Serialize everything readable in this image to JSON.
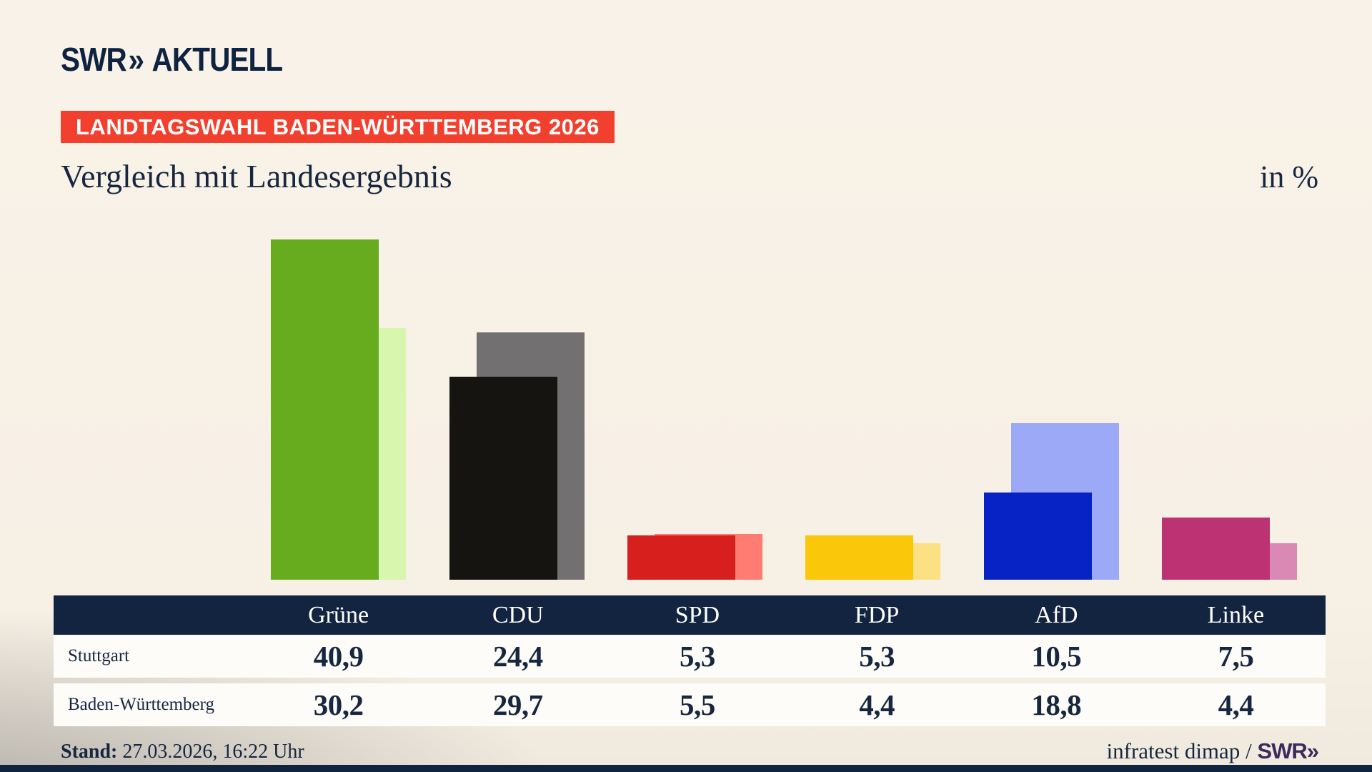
{
  "header": {
    "logo_brand": "SWR",
    "logo_chevrons": "»",
    "logo_suffix": "AKTUELL",
    "badge": "LANDTAGSWAHL BADEN-WÜRTTEMBERG 2026",
    "title": "Vergleich mit Landesergebnis",
    "unit_label": "in %"
  },
  "chart_data": {
    "type": "bar",
    "categories": [
      "Grüne",
      "CDU",
      "SPD",
      "FDP",
      "AfD",
      "Linke"
    ],
    "series": [
      {
        "name": "Stuttgart",
        "role": "front",
        "values": [
          40.9,
          24.4,
          5.3,
          5.3,
          10.5,
          7.5
        ]
      },
      {
        "name": "Baden-Württemberg",
        "role": "back",
        "values": [
          30.2,
          29.7,
          5.5,
          4.4,
          18.8,
          4.4
        ]
      }
    ],
    "title": "Vergleich mit Landesergebnis",
    "unit": "in %",
    "ylim": [
      0,
      41
    ],
    "grid": false,
    "legend_position": "table-below",
    "colors": {
      "front": [
        "#67ac1e",
        "#151411",
        "#d7201d",
        "#fbc70b",
        "#0723c5",
        "#bc3273"
      ],
      "back": [
        "#d9f6ae",
        "#727070",
        "#fe7c72",
        "#fce084",
        "#9ba9f6",
        "#d989b3"
      ]
    }
  },
  "table": {
    "rows": [
      {
        "label": "Stuttgart",
        "values": [
          "40,9",
          "24,4",
          "5,3",
          "5,3",
          "10,5",
          "7,5"
        ]
      },
      {
        "label": "Baden-Württemberg",
        "values": [
          "30,2",
          "29,7",
          "5,5",
          "4,4",
          "18,8",
          "4,4"
        ]
      }
    ]
  },
  "footer": {
    "stand_label": "Stand:",
    "stand_value": " 27.03.2026, 16:22 Uhr",
    "source_text": "infratest dimap / ",
    "source_logo": "SWR»"
  },
  "colors": {
    "background_cream": "#f8f1e6",
    "background_gray": "#8a8884",
    "navy": "#132440",
    "badge_red": "#f2402f",
    "swr_logo_purple": "#3c2b5c",
    "row_white": "#fdfcf9"
  }
}
